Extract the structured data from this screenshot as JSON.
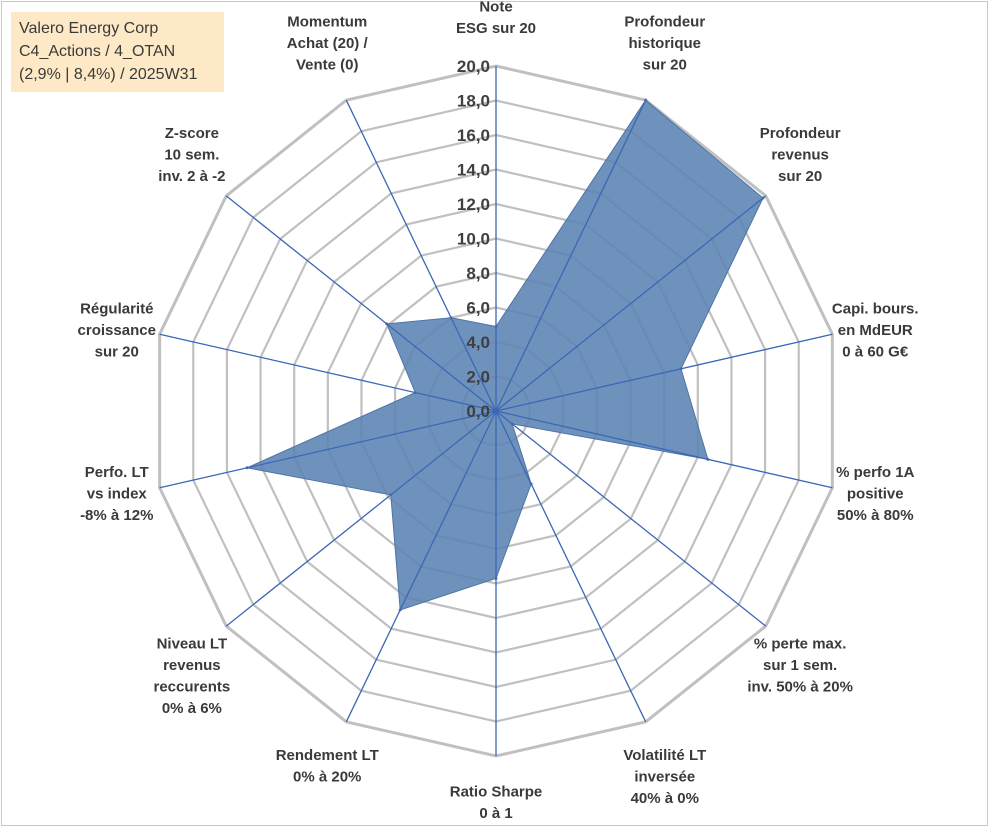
{
  "header": {
    "line1": "Valero Energy Corp",
    "line2": "C4_Actions / 4_OTAN",
    "line3": "(2,9% | 8,4%) / 2025W31"
  },
  "chart_data": {
    "type": "radar",
    "title": "Valero Energy Corp",
    "rlim": [
      0,
      20
    ],
    "ticks": [
      "0,0",
      "2,0",
      "4,0",
      "6,0",
      "8,0",
      "10,0",
      "12,0",
      "14,0",
      "16,0",
      "18,0",
      "20,0"
    ],
    "grid": true,
    "series_color": "#5b83b4",
    "grid_color": "#c0c0c0",
    "spoke_color": "#3b67b5",
    "categories": [
      [
        "Note",
        "ESG sur 20"
      ],
      [
        "Profondeur",
        "historique",
        "sur 20"
      ],
      [
        "Profondeur",
        "revenus",
        "sur 20"
      ],
      [
        "Capi. bours.",
        "en MdEUR",
        "0 à 60 G€"
      ],
      [
        "% perfo 1A",
        "positive",
        "50% à 80%"
      ],
      [
        "% perte max.",
        "sur 1 sem.",
        "inv. 50% à 20%"
      ],
      [
        "Volatilité LT",
        "inversée",
        "40% à 0%"
      ],
      [
        "Ratio Sharpe",
        "0 à 1"
      ],
      [
        "Rendement LT",
        "0% à 20%"
      ],
      [
        "Niveau LT",
        "revenus",
        "reccurents",
        "0% à 6%"
      ],
      [
        "Perfo. LT",
        "vs index",
        "-8% à 12%"
      ],
      [
        "Régularité",
        "croissance",
        "sur 20"
      ],
      [
        "Z-score",
        "10 sem.",
        "inv. 2 à -2"
      ],
      [
        "Momentum",
        "Achat (20) /",
        "Vente (0)"
      ]
    ],
    "series": [
      {
        "values": [
          4.9,
          20.0,
          19.8,
          11.0,
          12.6,
          1.2,
          4.7,
          9.7,
          12.8,
          7.8,
          14.8,
          4.8,
          8.1,
          6.0
        ]
      }
    ]
  }
}
